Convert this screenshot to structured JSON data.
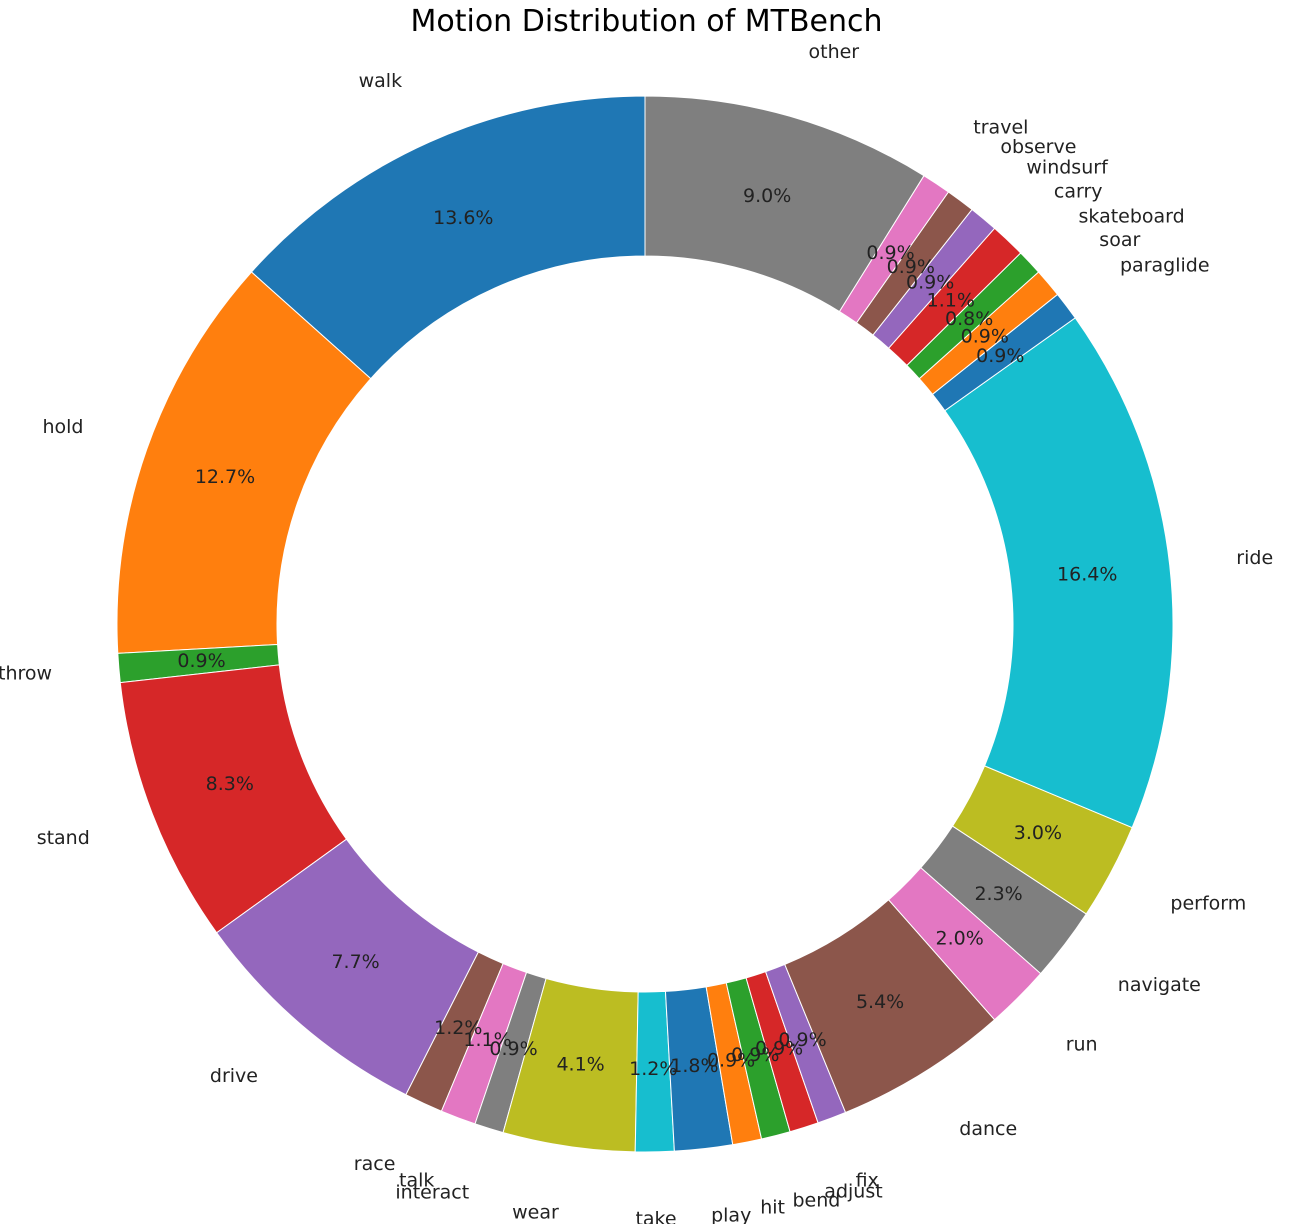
{
  "chart_data": {
    "type": "pie",
    "donut": true,
    "title": "Motion Distribution of MTBench",
    "start_angle_deg": 90,
    "direction": "counterclockwise",
    "slices": [
      {
        "label": "walk",
        "value": 13.6,
        "pct": "13.6%",
        "color": "#1f77b4"
      },
      {
        "label": "hold",
        "value": 12.7,
        "pct": "12.7%",
        "color": "#ff7f0e"
      },
      {
        "label": "throw",
        "value": 0.9,
        "pct": "0.9%",
        "color": "#2ca02c"
      },
      {
        "label": "stand",
        "value": 8.3,
        "pct": "8.3%",
        "color": "#d62728"
      },
      {
        "label": "drive",
        "value": 7.7,
        "pct": "7.7%",
        "color": "#9467bd"
      },
      {
        "label": "race",
        "value": 1.2,
        "pct": "1.2%",
        "color": "#8c564b"
      },
      {
        "label": "talk",
        "value": 1.1,
        "pct": "1.1%",
        "color": "#e377c2"
      },
      {
        "label": "interact",
        "value": 0.9,
        "pct": "0.9%",
        "color": "#7f7f7f"
      },
      {
        "label": "wear",
        "value": 4.1,
        "pct": "4.1%",
        "color": "#bcbd22"
      },
      {
        "label": "take",
        "value": 1.2,
        "pct": "1.2%",
        "color": "#17becf"
      },
      {
        "label": "play",
        "value": 1.8,
        "pct": "1.8%",
        "color": "#1f77b4"
      },
      {
        "label": "hit",
        "value": 0.9,
        "pct": "0.9%",
        "color": "#ff7f0e"
      },
      {
        "label": "bend",
        "value": 0.9,
        "pct": "0.9%",
        "color": "#2ca02c"
      },
      {
        "label": "adjust",
        "value": 0.9,
        "pct": "0.9%",
        "color": "#d62728"
      },
      {
        "label": "fix",
        "value": 0.9,
        "pct": "0.9%",
        "color": "#9467bd"
      },
      {
        "label": "dance",
        "value": 5.4,
        "pct": "5.4%",
        "color": "#8c564b"
      },
      {
        "label": "run",
        "value": 2.0,
        "pct": "2.0%",
        "color": "#e377c2"
      },
      {
        "label": "navigate",
        "value": 2.3,
        "pct": "2.3%",
        "color": "#7f7f7f"
      },
      {
        "label": "perform",
        "value": 3.0,
        "pct": "3.0%",
        "color": "#bcbd22"
      },
      {
        "label": "ride",
        "value": 16.4,
        "pct": "16.4%",
        "color": "#17becf"
      },
      {
        "label": "paraglide",
        "value": 0.9,
        "pct": "0.9%",
        "color": "#1f77b4"
      },
      {
        "label": "soar",
        "value": 0.9,
        "pct": "0.9%",
        "color": "#ff7f0e"
      },
      {
        "label": "skateboard",
        "value": 0.8,
        "pct": "0.8%",
        "color": "#2ca02c"
      },
      {
        "label": "carry",
        "value": 1.1,
        "pct": "1.1%",
        "color": "#d62728"
      },
      {
        "label": "windsurf",
        "value": 0.9,
        "pct": "0.9%",
        "color": "#9467bd"
      },
      {
        "label": "observe",
        "value": 0.9,
        "pct": "0.9%",
        "color": "#8c564b"
      },
      {
        "label": "travel",
        "value": 0.9,
        "pct": "0.9%",
        "color": "#e377c2"
      },
      {
        "label": "other",
        "value": 9.0,
        "pct": "9.0%",
        "color": "#7f7f7f"
      }
    ]
  }
}
